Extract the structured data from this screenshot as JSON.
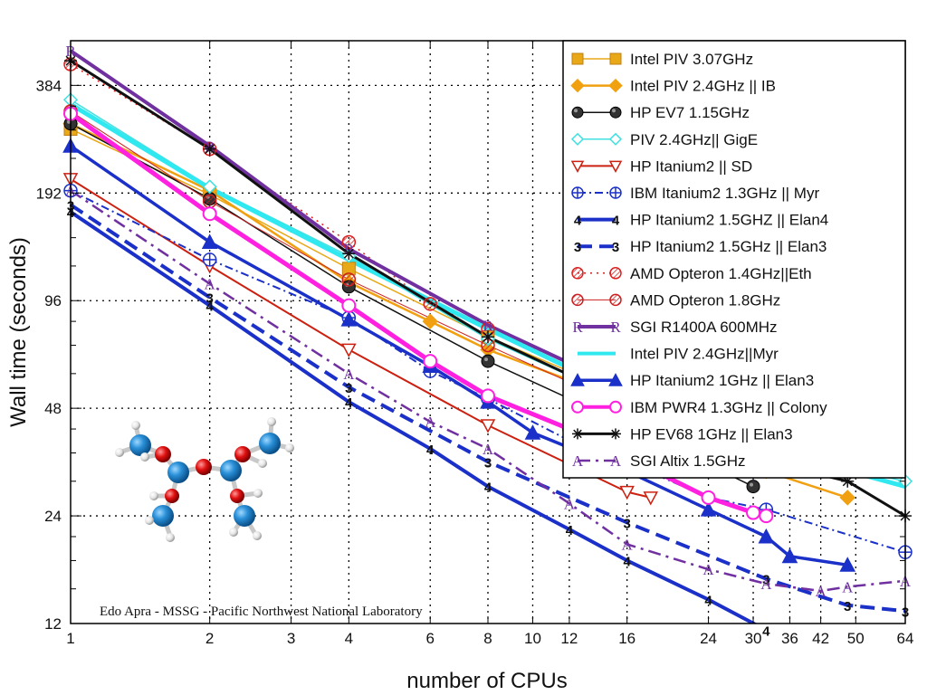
{
  "chart_data": {
    "type": "line",
    "xlabel": "number of CPUs",
    "ylabel": "Wall time (seconds)",
    "xscale": "log",
    "yscale": "log",
    "xlim": [
      1,
      64
    ],
    "ylim": [
      12,
      512
    ],
    "xticks": [
      1,
      2,
      3,
      4,
      6,
      8,
      10,
      12,
      16,
      24,
      30,
      36,
      42,
      50,
      64
    ],
    "yticks": [
      12,
      24,
      48,
      96,
      192,
      384
    ],
    "grid": true,
    "legend_position": "top-right",
    "credit": "Edo Apra - MSSG - Pacific  Northwest National Laboratory",
    "series": [
      {
        "name": "Intel PIV 3.07GHz",
        "color": "#e8a818",
        "marker": "square",
        "dash": "",
        "width": 1.5,
        "x": [
          1,
          2,
          4,
          8,
          16,
          32
        ],
        "y": [
          290,
          190,
          118,
          76,
          52,
          32
        ]
      },
      {
        "name": "Intel PIV 2.4GHz || IB",
        "color": "#f0a010",
        "marker": "diamond",
        "dash": "",
        "width": 2.5,
        "x": [
          1,
          2,
          4,
          6,
          8,
          16,
          32,
          48
        ],
        "y": [
          300,
          195,
          108,
          84,
          70,
          50,
          32,
          27
        ]
      },
      {
        "name": "HP EV7 1.15GHz",
        "color": "#111111",
        "marker": "hexball",
        "dash": "",
        "width": 1.5,
        "x": [
          1,
          2,
          4,
          8,
          16,
          30
        ],
        "y": [
          300,
          185,
          105,
          65,
          43,
          29
        ]
      },
      {
        "name": "PIV 2.4GHz|| GigE",
        "color": "#40e0e0",
        "marker": "diamond-open",
        "dash": "",
        "width": 1.5,
        "x": [
          1,
          2,
          4,
          8,
          16,
          32,
          64
        ],
        "y": [
          350,
          200,
          128,
          75,
          50,
          36,
          30
        ]
      },
      {
        "name": "HP Itanium2 || SD",
        "color": "#cc2010",
        "marker": "triangle-down-open",
        "dash": "",
        "width": 2,
        "x": [
          1,
          2,
          4,
          8,
          16,
          18
        ],
        "y": [
          210,
          120,
          70,
          43,
          28,
          27
        ]
      },
      {
        "name": "IBM Itanium2 1.3GHz || Myr",
        "color": "#1a30c8",
        "marker": "crosscircle",
        "dash": "9,4,2,4",
        "width": 2,
        "x": [
          1,
          2,
          4,
          6,
          8,
          12,
          16,
          24,
          32,
          64
        ],
        "y": [
          195,
          125,
          86,
          61,
          51,
          39,
          34,
          27,
          25,
          19
        ]
      },
      {
        "name": "HP Itanium2 1.5GHZ || Elan4",
        "color": "#1a30c8",
        "marker": "text:4",
        "dash": "",
        "width": 4,
        "x": [
          1,
          2,
          4,
          6,
          8,
          12,
          16,
          24,
          32
        ],
        "y": [
          170,
          93,
          50,
          37,
          29,
          22,
          18,
          14,
          11.5
        ]
      },
      {
        "name": "HP Itanium2 1.5GHz || Elan3",
        "color": "#1a30c8",
        "marker": "text:3",
        "dash": "16,8",
        "width": 4,
        "x": [
          1,
          2,
          4,
          8,
          16,
          32,
          48,
          64
        ],
        "y": [
          178,
          98,
          55,
          34,
          23,
          16,
          13.5,
          13
        ]
      },
      {
        "name": "AMD Opteron 1.4GHz||Eth",
        "color": "#dd2020",
        "marker": "hatch-circle",
        "dash": "2,5",
        "width": 1.5,
        "x": [
          1,
          2,
          4,
          6,
          8,
          16
        ],
        "y": [
          440,
          255,
          140,
          94,
          80,
          55
        ]
      },
      {
        "name": "AMD Opteron 1.8GHz",
        "color": "#cc2020",
        "marker": "hatch-circle",
        "dash": "",
        "width": 1,
        "x": [
          1,
          2,
          4,
          8,
          16
        ],
        "y": [
          325,
          182,
          110,
          72,
          48
        ]
      },
      {
        "name": "SGI R1400A 600MHz",
        "color": "#7030a0",
        "marker": "text:R",
        "dash": "",
        "width": 4,
        "x": [
          1,
          2,
          4,
          8,
          16
        ],
        "y": [
          480,
          260,
          134,
          82,
          54
        ]
      },
      {
        "name": "Intel PIV 2.4GHz||Myr",
        "color": "#30e8f0",
        "marker": "none",
        "dash": "",
        "width": 5,
        "x": [
          1,
          2,
          4,
          8,
          16,
          32,
          64
        ],
        "y": [
          340,
          198,
          125,
          80,
          52,
          37,
          29
        ]
      },
      {
        "name": "HP Itanium2 1GHz || Elan3",
        "color": "#1a30c8",
        "marker": "triangle",
        "dash": "",
        "width": 3.5,
        "x": [
          1,
          2,
          4,
          6,
          8,
          10,
          16,
          24,
          32,
          36,
          48
        ],
        "y": [
          260,
          140,
          85,
          63,
          50,
          41,
          32,
          25,
          21,
          18.5,
          17.5
        ]
      },
      {
        "name": "IBM PWR4 1.3GHz || Colony",
        "color": "#ff20e0",
        "marker": "circle-open",
        "dash": "",
        "width": 5,
        "x": [
          1,
          2,
          4,
          6,
          8,
          12,
          16,
          24,
          30,
          32
        ],
        "y": [
          320,
          168,
          93,
          65,
          52,
          42,
          35,
          27,
          24.5,
          24
        ]
      },
      {
        "name": "HP EV68 1GHz || Elan3",
        "color": "#111111",
        "marker": "star",
        "dash": "",
        "width": 3,
        "x": [
          1,
          2,
          4,
          8,
          16,
          32,
          48,
          64
        ],
        "y": [
          450,
          255,
          130,
          76,
          50,
          34,
          30,
          24
        ]
      },
      {
        "name": "SGI Altix 1.5GHz",
        "color": "#7030a0",
        "marker": "text:A",
        "dash": "14,6,3,6",
        "width": 2.5,
        "x": [
          1,
          2,
          4,
          6,
          8,
          12,
          16,
          24,
          32,
          42,
          48,
          64
        ],
        "y": [
          195,
          107,
          60,
          44,
          37,
          26,
          20,
          17,
          15.5,
          14.8,
          15.2,
          15.8
        ]
      }
    ]
  }
}
